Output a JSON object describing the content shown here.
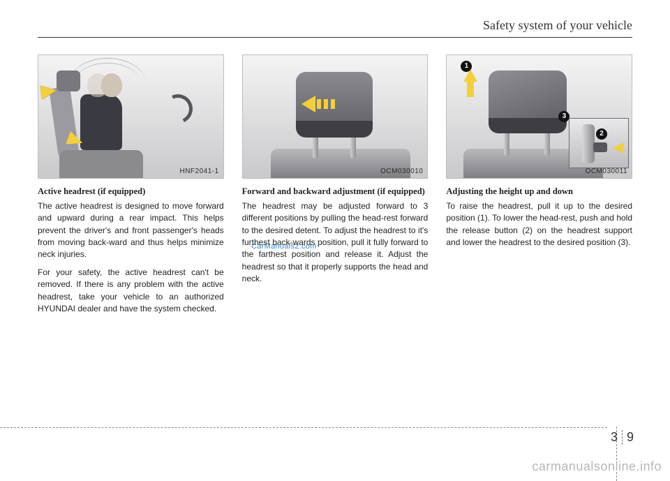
{
  "header": {
    "title": "Safety system of your vehicle"
  },
  "figures": {
    "f1": {
      "label": "HNF2041-1"
    },
    "f2": {
      "label": "OCM030010"
    },
    "f3": {
      "label": "OCM030011"
    }
  },
  "columns": {
    "c1": {
      "heading": "Active headrest (if equipped)",
      "p1": "The active headrest is designed to move forward and upward during a rear impact. This helps prevent the driver's and front passenger's heads from moving back-ward and thus helps minimize neck injuries.",
      "p2": "For your safety, the active headrest can't be removed. If there is any problem with the active headrest, take your vehicle to an authorized HYUNDAI dealer and have the system checked."
    },
    "c2": {
      "heading": "Forward and backward adjustment (if equipped)",
      "p1": "The headrest may be adjusted forward to 3 different positions by pulling the head-rest forward to the desired detent. To adjust the headrest to it's furthest back-wards position, pull it fully forward to the farthest position and release it. Adjust the headrest so that it properly supports the head and neck."
    },
    "c3": {
      "heading": "Adjusting the height up and down",
      "p1": "To raise the headrest, pull it up to the desired position (1). To lower the head-rest, push and hold the release button (2) on the headrest support and lower the headrest to the desired position (3)."
    }
  },
  "callouts": {
    "n1": "1",
    "n2": "2",
    "n3": "3"
  },
  "pagenum": {
    "section": "3",
    "page": "9"
  },
  "watermark_blue": "CarManuals2.com",
  "site_watermark": "carmanualsonline.info",
  "colors": {
    "arrow": "#f3cf3b",
    "text": "#222222",
    "figure_bg_top": "#f4f4f5",
    "figure_bg_bottom": "#c9c9cb",
    "watermark_gray": "#b7b7b7",
    "watermark_blue": "#2a7cc4"
  }
}
